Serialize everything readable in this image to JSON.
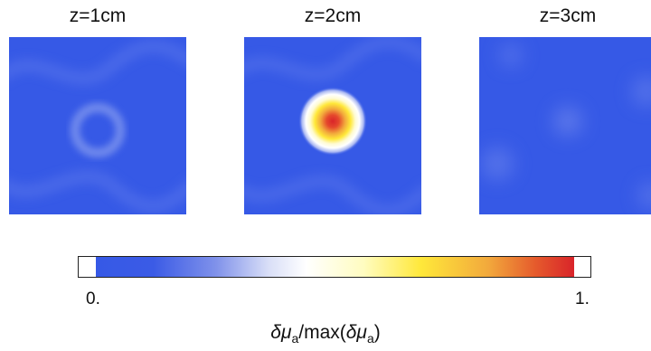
{
  "panels": [
    {
      "title": "z=1cm"
    },
    {
      "title": "z=2cm"
    },
    {
      "title": "z=3cm"
    }
  ],
  "colorbar": {
    "min_label": "0.",
    "max_label": "1.",
    "label_parts": {
      "delta1": "δ",
      "mu1": "μ",
      "sub1": "a",
      "mid": "/max(",
      "delta2": "δ",
      "mu2": "μ",
      "sub2": "a",
      "end": ")"
    }
  },
  "colors": {
    "background_blue": "#3659e6",
    "peak_red": "#d9242a",
    "mid_yellow": "#ffe83a"
  }
}
